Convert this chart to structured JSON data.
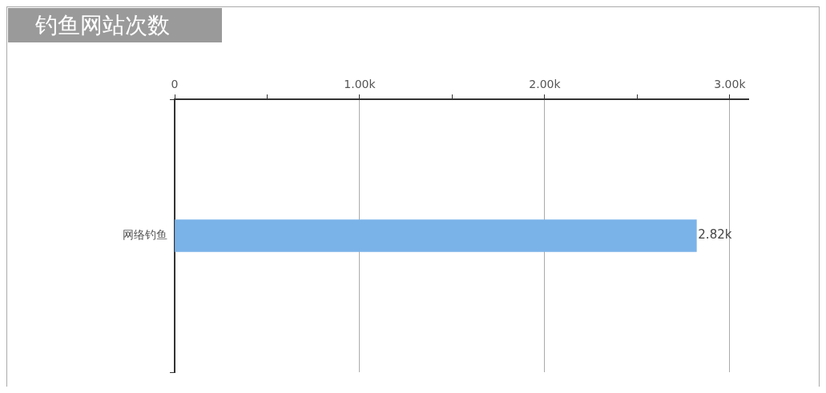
{
  "chart_data": {
    "type": "bar",
    "title": "钓鱼网站次数",
    "orientation": "horizontal",
    "categories": [
      "网络钓鱼"
    ],
    "values": [
      2820
    ],
    "value_labels": [
      "2.82k"
    ],
    "color": "#7ab3e8",
    "xlim": [
      0,
      3100
    ],
    "xticks": [
      {
        "value": 0,
        "label": "0"
      },
      {
        "value": 500,
        "label": null
      },
      {
        "value": 1000,
        "label": "1.00k"
      },
      {
        "value": 1500,
        "label": null
      },
      {
        "value": 2000,
        "label": "2.00k"
      },
      {
        "value": 2500,
        "label": null
      },
      {
        "value": 3000,
        "label": "3.00k"
      }
    ],
    "grid": "x"
  }
}
